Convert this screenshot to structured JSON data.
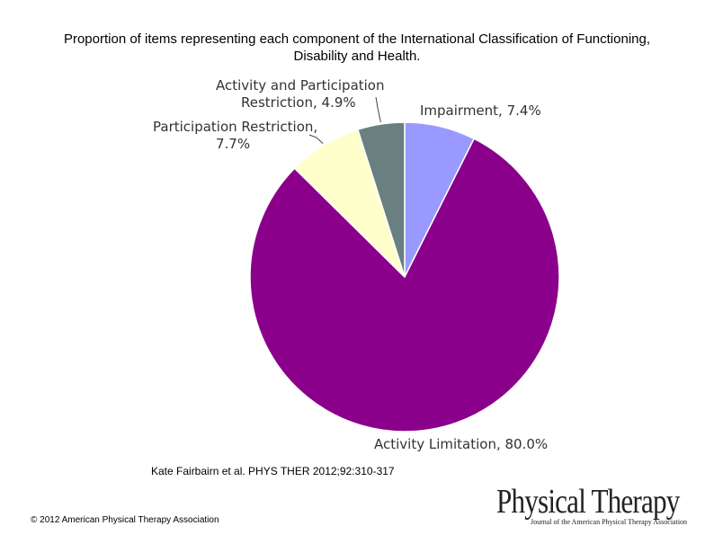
{
  "header": {
    "title": "Proportion of items representing each component of the International Classification of Functioning, Disability and Health."
  },
  "chart_data": {
    "type": "pie",
    "title": "Proportion of items representing each component of the International Classification of Functioning, Disability and Health.",
    "slices": [
      {
        "label": "Impairment",
        "value": 7.4,
        "display": "Impairment, 7.4%",
        "color": "#9999FF"
      },
      {
        "label": "Activity Limitation",
        "value": 80.0,
        "display": "Activity Limitation, 80.0%",
        "color": "#8B008B"
      },
      {
        "label": "Participation Restriction",
        "value": 7.7,
        "display_lines": [
          "Participation Restriction,",
          "7.7%"
        ],
        "color": "#FFFFCC"
      },
      {
        "label": "Activity and Participation Restriction",
        "value": 4.9,
        "display_lines": [
          "Activity and Participation",
          "Restriction, 4.9%"
        ],
        "color": "#6A7F80"
      }
    ],
    "legend": "none",
    "labels": "outside"
  },
  "footer": {
    "citation": "Kate Fairbairn et al. PHYS THER 2012;92:310-317",
    "copyright": "© 2012 American Physical Therapy Association"
  },
  "logo": {
    "main": "Physical Therapy",
    "sub": "Journal of the American Physical Therapy Association"
  }
}
